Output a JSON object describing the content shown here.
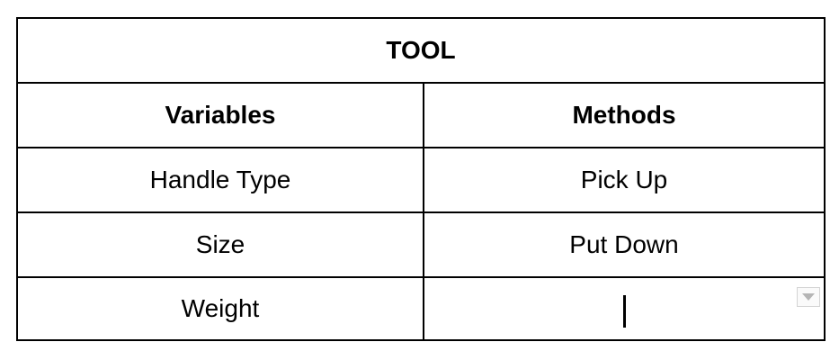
{
  "table": {
    "title": "TOOL",
    "headers": {
      "variables": "Variables",
      "methods": "Methods"
    },
    "rows": [
      {
        "variable": "Handle Type",
        "method": "Pick Up"
      },
      {
        "variable": "Size",
        "method": "Put Down"
      },
      {
        "variable": "Weight",
        "method": ""
      }
    ]
  },
  "icons": {
    "cell_dropdown": "chevron-down-icon"
  }
}
